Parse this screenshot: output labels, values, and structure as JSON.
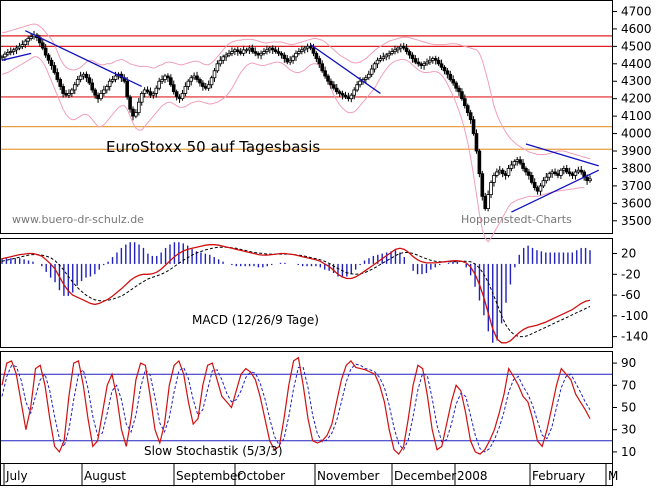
{
  "chart_data": [
    {
      "type": "line",
      "subtype": "candlestick",
      "title": "EuroStoxx 50 auf Tagesbasis",
      "watermark_left": "www.buero-dr-schulz.de",
      "watermark_right": "Hoppenstedt-Charts",
      "y_ticks": [
        3500,
        3600,
        3700,
        3800,
        3900,
        4000,
        4100,
        4200,
        4300,
        4400,
        4500,
        4600,
        4700
      ],
      "ylim": [
        3430,
        4760
      ],
      "horizontal_levels": [
        {
          "value": 4560,
          "color": "#e02020"
        },
        {
          "value": 4500,
          "color": "#e02020"
        },
        {
          "value": 4210,
          "color": "#e02020"
        },
        {
          "value": 4040,
          "color": "#e8a040"
        },
        {
          "value": 3910,
          "color": "#e8a040"
        }
      ],
      "trend_lines": [
        {
          "from": [
            0,
            4420
          ],
          "to": [
            10,
            4460
          ]
        },
        {
          "from": [
            8,
            4590
          ],
          "to": [
            48,
            4270
          ]
        },
        {
          "from": [
            106,
            4510
          ],
          "to": [
            130,
            4230
          ]
        },
        {
          "from": [
            180,
            3940
          ],
          "to": [
            205,
            3815
          ]
        },
        {
          "from": [
            175,
            3550
          ],
          "to": [
            205,
            3790
          ]
        }
      ],
      "close": [
        4440,
        4455,
        4465,
        4470,
        4480,
        4490,
        4500,
        4510,
        4530,
        4545,
        4555,
        4565,
        4550,
        4520,
        4490,
        4450,
        4420,
        4390,
        4350,
        4310,
        4270,
        4230,
        4220,
        4230,
        4250,
        4280,
        4310,
        4330,
        4340,
        4320,
        4290,
        4250,
        4220,
        4200,
        4230,
        4250,
        4270,
        4300,
        4310,
        4330,
        4340,
        4320,
        4300,
        4210,
        4140,
        4100,
        4120,
        4180,
        4230,
        4250,
        4240,
        4220,
        4230,
        4260,
        4300,
        4310,
        4330,
        4320,
        4280,
        4240,
        4210,
        4200,
        4230,
        4270,
        4300,
        4320,
        4330,
        4310,
        4290,
        4270,
        4260,
        4280,
        4320,
        4360,
        4400,
        4420,
        4440,
        4450,
        4460,
        4470,
        4480,
        4470,
        4460,
        4480,
        4480,
        4490,
        4470,
        4460,
        4450,
        4460,
        4470,
        4480,
        4490,
        4480,
        4470,
        4460,
        4450,
        4430,
        4410,
        4420,
        4440,
        4460,
        4470,
        4480,
        4490,
        4500,
        4490,
        4460,
        4430,
        4400,
        4360,
        4330,
        4300,
        4280,
        4260,
        4240,
        4230,
        4220,
        4210,
        4200,
        4220,
        4250,
        4280,
        4300,
        4310,
        4320,
        4340,
        4370,
        4400,
        4420,
        4430,
        4440,
        4450,
        4460,
        4470,
        4480,
        4490,
        4500,
        4490,
        4470,
        4450,
        4430,
        4410,
        4400,
        4390,
        4400,
        4410,
        4420,
        4430,
        4420,
        4400,
        4380,
        4360,
        4340,
        4310,
        4290,
        4260,
        4240,
        4200,
        4160,
        4120,
        4080,
        4000,
        3900,
        3770,
        3640,
        3570,
        3650,
        3720,
        3760,
        3780,
        3790,
        3770,
        3760,
        3800,
        3820,
        3840,
        3850,
        3830,
        3800,
        3780,
        3760,
        3720,
        3690,
        3670,
        3700,
        3730,
        3750,
        3770,
        3780,
        3770,
        3760,
        3790,
        3800,
        3780,
        3770,
        3760,
        3780,
        3790,
        3780,
        3750,
        3730,
        3740
      ],
      "bb_upper": [
        4580,
        4580,
        4585,
        4590,
        4595,
        4600,
        4605,
        4610,
        4615,
        4620,
        4625,
        4628,
        4625,
        4615,
        4600,
        4580,
        4560,
        4540,
        4510,
        4470,
        4430,
        4400,
        4380,
        4370,
        4365,
        4365,
        4370,
        4380,
        4395,
        4410,
        4420,
        4420,
        4410,
        4400,
        4395,
        4395,
        4400,
        4400,
        4405,
        4415,
        4420,
        4425,
        4420,
        4410,
        4400,
        4395,
        4390,
        4385,
        4385,
        4385,
        4385,
        4380,
        4375,
        4380,
        4390,
        4395,
        4405,
        4410,
        4410,
        4405,
        4400,
        4395,
        4395,
        4400,
        4405,
        4410,
        4415,
        4415,
        4410,
        4400,
        4395,
        4395,
        4405,
        4420,
        4440,
        4460,
        4480,
        4500,
        4515,
        4525,
        4530,
        4535,
        4535,
        4540,
        4540,
        4540,
        4540,
        4535,
        4530,
        4525,
        4520,
        4520,
        4522,
        4525,
        4525,
        4525,
        4525,
        4520,
        4515,
        4510,
        4510,
        4515,
        4520,
        4525,
        4530,
        4535,
        4540,
        4545,
        4545,
        4540,
        4535,
        4525,
        4510,
        4495,
        4480,
        4465,
        4450,
        4440,
        4430,
        4420,
        4410,
        4405,
        4405,
        4410,
        4420,
        4430,
        4445,
        4460,
        4475,
        4490,
        4500,
        4510,
        4520,
        4530,
        4535,
        4540,
        4545,
        4550,
        4552,
        4552,
        4550,
        4545,
        4540,
        4535,
        4530,
        4525,
        4520,
        4515,
        4512,
        4510,
        4510,
        4510,
        4510,
        4512,
        4515,
        4515,
        4515,
        4510,
        4505,
        4500,
        4495,
        4490,
        4485,
        4480,
        4460,
        4420,
        4360,
        4300,
        4230,
        4160,
        4110,
        4070,
        4040,
        4010,
        3985,
        3965,
        3950,
        3935,
        3925,
        3915,
        3905,
        3895,
        3890,
        3885,
        3880,
        3880,
        3880,
        3882,
        3885,
        3890,
        3895,
        3900,
        3900,
        3900,
        3895,
        3890,
        3885,
        3880,
        3875,
        3870,
        3865,
        3860,
        3855
      ],
      "bb_lower": [
        4340,
        4345,
        4350,
        4360,
        4370,
        4380,
        4390,
        4400,
        4410,
        4420,
        4430,
        4440,
        4440,
        4430,
        4410,
        4380,
        4340,
        4300,
        4260,
        4220,
        4180,
        4140,
        4110,
        4090,
        4080,
        4080,
        4090,
        4100,
        4110,
        4110,
        4100,
        4080,
        4060,
        4040,
        4040,
        4050,
        4070,
        4090,
        4110,
        4130,
        4150,
        4160,
        4160,
        4140,
        4100,
        4060,
        4030,
        4020,
        4020,
        4040,
        4060,
        4080,
        4100,
        4120,
        4140,
        4160,
        4170,
        4180,
        4180,
        4170,
        4160,
        4150,
        4150,
        4155,
        4165,
        4175,
        4180,
        4185,
        4185,
        4180,
        4175,
        4170,
        4170,
        4175,
        4180,
        4190,
        4200,
        4215,
        4235,
        4260,
        4290,
        4320,
        4350,
        4370,
        4390,
        4400,
        4405,
        4400,
        4395,
        4390,
        4390,
        4395,
        4400,
        4405,
        4410,
        4410,
        4405,
        4395,
        4380,
        4365,
        4355,
        4350,
        4350,
        4355,
        4365,
        4380,
        4395,
        4400,
        4400,
        4390,
        4370,
        4340,
        4300,
        4260,
        4220,
        4190,
        4165,
        4145,
        4130,
        4120,
        4120,
        4125,
        4140,
        4160,
        4180,
        4200,
        4220,
        4240,
        4260,
        4290,
        4320,
        4345,
        4370,
        4390,
        4405,
        4415,
        4420,
        4425,
        4425,
        4420,
        4410,
        4395,
        4380,
        4365,
        4355,
        4350,
        4350,
        4352,
        4355,
        4355,
        4350,
        4335,
        4315,
        4285,
        4250,
        4215,
        4175,
        4130,
        4080,
        4020,
        3950,
        3860,
        3760,
        3650,
        3540,
        3450,
        3400,
        3380,
        3400,
        3430,
        3460,
        3490,
        3520,
        3550,
        3580,
        3600,
        3610,
        3620,
        3625,
        3630,
        3635,
        3640,
        3640,
        3640,
        3640,
        3645,
        3650,
        3655,
        3660,
        3665,
        3668,
        3670,
        3672,
        3675,
        3678,
        3680,
        3682,
        3685,
        3688,
        3690,
        3690
      ]
    },
    {
      "type": "line",
      "title": "MACD (12/26/9 Tage)",
      "y_ticks": [
        20,
        -20,
        -60,
        -100,
        -140
      ],
      "ylim": [
        -160,
        48
      ],
      "macd": [
        10,
        12,
        14,
        16,
        18,
        19,
        20,
        20,
        18,
        15,
        8,
        0,
        -10,
        -25,
        -40,
        -52,
        -60,
        -64,
        -68,
        -72,
        -76,
        -78,
        -76,
        -72,
        -68,
        -62,
        -55,
        -48,
        -40,
        -32,
        -26,
        -22,
        -20,
        -20,
        -19,
        -16,
        -10,
        -2,
        6,
        14,
        20,
        25,
        28,
        30,
        32,
        34,
        36,
        37,
        37,
        36,
        34,
        32,
        30,
        28,
        26,
        24,
        22,
        20,
        18,
        17,
        17,
        18,
        19,
        20,
        20,
        19,
        18,
        16,
        14,
        12,
        10,
        8,
        5,
        0,
        -5,
        -12,
        -20,
        -25,
        -28,
        -28,
        -25,
        -20,
        -14,
        -8,
        -2,
        4,
        10,
        16,
        22,
        28,
        30,
        28,
        22,
        14,
        8,
        4,
        2,
        2,
        2,
        3,
        4,
        5,
        6,
        6,
        5,
        2,
        -6,
        -20,
        -40,
        -65,
        -95,
        -125,
        -145,
        -152,
        -152,
        -148,
        -140,
        -132,
        -126,
        -122,
        -120,
        -118,
        -115,
        -112,
        -108,
        -104,
        -100,
        -96,
        -92,
        -88,
        -82,
        -76,
        -72,
        -70
      ],
      "signal": [
        5,
        7,
        9,
        11,
        13,
        15,
        17,
        18,
        18,
        17,
        15,
        12,
        6,
        -2,
        -12,
        -24,
        -35,
        -45,
        -53,
        -60,
        -65,
        -69,
        -71,
        -71,
        -70,
        -68,
        -65,
        -62,
        -57,
        -51,
        -45,
        -39,
        -34,
        -29,
        -26,
        -23,
        -20,
        -16,
        -11,
        -5,
        1,
        7,
        12,
        17,
        21,
        24,
        27,
        29,
        31,
        32,
        32,
        32,
        31,
        30,
        28,
        26,
        24,
        22,
        21,
        20,
        19,
        19,
        19,
        19,
        19,
        19,
        18,
        17,
        16,
        14,
        12,
        10,
        8,
        5,
        1,
        -4,
        -9,
        -13,
        -17,
        -19,
        -20,
        -19,
        -17,
        -13,
        -9,
        -4,
        1,
        6,
        11,
        16,
        20,
        22,
        22,
        20,
        17,
        13,
        10,
        7,
        5,
        4,
        4,
        4,
        4,
        4,
        5,
        5,
        4,
        0,
        -8,
        -20,
        -36,
        -56,
        -78,
        -100,
        -118,
        -130,
        -137,
        -140,
        -140,
        -138,
        -134,
        -130,
        -126,
        -122,
        -118,
        -114,
        -110,
        -106,
        -102,
        -98,
        -94,
        -90,
        -86,
        -82
      ]
    },
    {
      "type": "line",
      "title": "Slow Stochastik (5/3/3)",
      "y_ticks": [
        90,
        70,
        50,
        30,
        10
      ],
      "ylim": [
        0,
        100
      ],
      "bands": [
        80,
        20
      ],
      "k": [
        70,
        90,
        92,
        80,
        55,
        30,
        50,
        85,
        88,
        70,
        40,
        15,
        10,
        20,
        60,
        90,
        92,
        70,
        40,
        15,
        20,
        45,
        70,
        80,
        60,
        30,
        15,
        40,
        75,
        90,
        88,
        60,
        30,
        18,
        35,
        70,
        88,
        92,
        80,
        55,
        35,
        40,
        70,
        88,
        90,
        75,
        60,
        55,
        50,
        65,
        80,
        85,
        82,
        75,
        60,
        40,
        20,
        12,
        15,
        40,
        70,
        92,
        95,
        70,
        40,
        20,
        18,
        20,
        25,
        35,
        55,
        75,
        88,
        92,
        86,
        85,
        84,
        82,
        80,
        70,
        55,
        30,
        12,
        8,
        15,
        40,
        70,
        88,
        85,
        60,
        30,
        12,
        15,
        35,
        55,
        70,
        65,
        45,
        20,
        10,
        8,
        12,
        20,
        30,
        45,
        62,
        85,
        78,
        70,
        60,
        55,
        40,
        20,
        15,
        30,
        50,
        70,
        85,
        80,
        75,
        62,
        55,
        48,
        40
      ],
      "d": [
        60,
        78,
        88,
        87,
        75,
        55,
        45,
        60,
        75,
        80,
        65,
        42,
        22,
        15,
        30,
        57,
        80,
        84,
        67,
        42,
        25,
        27,
        45,
        65,
        70,
        57,
        35,
        28,
        43,
        68,
        84,
        79,
        59,
        36,
        28,
        41,
        64,
        83,
        86,
        76,
        57,
        43,
        48,
        66,
        83,
        84,
        75,
        63,
        55,
        57,
        65,
        77,
        82,
        81,
        72,
        58,
        40,
        24,
        16,
        22,
        42,
        67,
        86,
        86,
        68,
        43,
        26,
        19,
        21,
        27,
        38,
        55,
        73,
        85,
        89,
        88,
        85,
        84,
        82,
        77,
        68,
        52,
        32,
        17,
        12,
        21,
        42,
        66,
        81,
        78,
        58,
        34,
        19,
        21,
        35,
        53,
        63,
        60,
        43,
        25,
        13,
        10,
        13,
        21,
        32,
        46,
        64,
        75,
        78,
        69,
        62,
        52,
        38,
        25,
        22,
        32,
        50,
        68,
        78,
        80,
        72,
        64,
        55,
        48
      ]
    }
  ],
  "x_axis": {
    "labels": [
      "July",
      "August",
      "September",
      "October",
      "November",
      "December",
      "2008",
      "February",
      "M"
    ]
  }
}
